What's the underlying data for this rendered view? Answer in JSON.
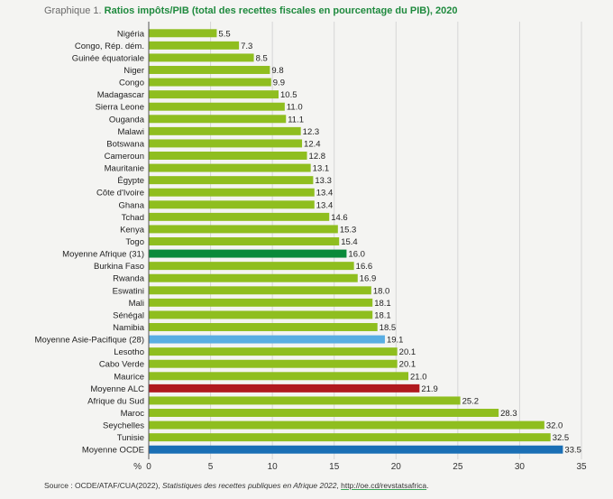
{
  "title": {
    "prefix": "Graphique 1. ",
    "main": "Ratios impôts/PIB (total des recettes fiscales en pourcentage du PIB), 2020"
  },
  "source": {
    "prefix": "Source : OCDE/ATAF/CUA(2022), ",
    "publication": "Statistiques des recettes publiques en Afrique 2022",
    "sep": ", ",
    "link": "http://oe.cd/revstatsafrica",
    "suffix": "."
  },
  "colors": {
    "country": "#8fbe1f",
    "moyenne_afrique": "#0a8a3a",
    "moyenne_asie_pacifique": "#5aaee3",
    "moyenne_alc": "#b0191e",
    "moyenne_ocde": "#1a6fb5",
    "gridline": "#d6d6d6",
    "axis": "#555555"
  },
  "chart_data": {
    "type": "bar",
    "orientation": "horizontal",
    "title": "Ratios impôts/PIB (total des recettes fiscales en pourcentage du PIB), 2020",
    "xlabel": "%",
    "ylabel": "",
    "xlim": [
      0,
      35
    ],
    "xticks": [
      0,
      5,
      10,
      15,
      20,
      25,
      30,
      35
    ],
    "grid": true,
    "categories": [
      "Nigéria",
      "Congo, Rép. dém.",
      "Guinée équatoriale",
      "Niger",
      "Congo",
      "Madagascar",
      "Sierra Leone",
      "Ouganda",
      "Malawi",
      "Botswana",
      "Cameroun",
      "Mauritanie",
      "Égypte",
      "Côte d'Ivoire",
      "Ghana",
      "Tchad",
      "Kenya",
      "Togo",
      "Moyenne Afrique (31)",
      "Burkina Faso",
      "Rwanda",
      "Eswatini",
      "Mali",
      "Sénégal",
      "Namibia",
      "Moyenne Asie-Pacifique (28)",
      "Lesotho",
      "Cabo Verde",
      "Maurice",
      "Moyenne ALC",
      "Afrique du Sud",
      "Maroc",
      "Seychelles",
      "Tunisie",
      "Moyenne OCDE"
    ],
    "values": [
      5.5,
      7.3,
      8.5,
      9.8,
      9.9,
      10.5,
      11.0,
      11.1,
      12.3,
      12.4,
      12.8,
      13.1,
      13.3,
      13.4,
      13.4,
      14.6,
      15.3,
      15.4,
      16.0,
      16.6,
      16.9,
      18.0,
      18.1,
      18.1,
      18.5,
      19.1,
      20.1,
      20.1,
      21.0,
      21.9,
      25.2,
      28.3,
      32.0,
      32.5,
      33.5
    ],
    "value_labels": [
      "5.5",
      "7.3",
      "8.5",
      "9.8",
      "9.9",
      "10.5",
      "11.0",
      "11.1",
      "12.3",
      "12.4",
      "12.8",
      "13.1",
      "13.3",
      "13.4",
      "13.4",
      "14.6",
      "15.3",
      "15.4",
      "16.0",
      "16.6",
      "16.9",
      "18.0",
      "18.1",
      "18.1",
      "18.5",
      "19.1",
      "20.1",
      "20.1",
      "21.0",
      "21.9",
      "25.2",
      "28.3",
      "32.0",
      "32.5",
      "33.5"
    ],
    "bar_types": [
      "country",
      "country",
      "country",
      "country",
      "country",
      "country",
      "country",
      "country",
      "country",
      "country",
      "country",
      "country",
      "country",
      "country",
      "country",
      "country",
      "country",
      "country",
      "moyenne_afrique",
      "country",
      "country",
      "country",
      "country",
      "country",
      "country",
      "moyenne_asie_pacifique",
      "country",
      "country",
      "country",
      "moyenne_alc",
      "country",
      "country",
      "country",
      "country",
      "moyenne_ocde"
    ]
  }
}
